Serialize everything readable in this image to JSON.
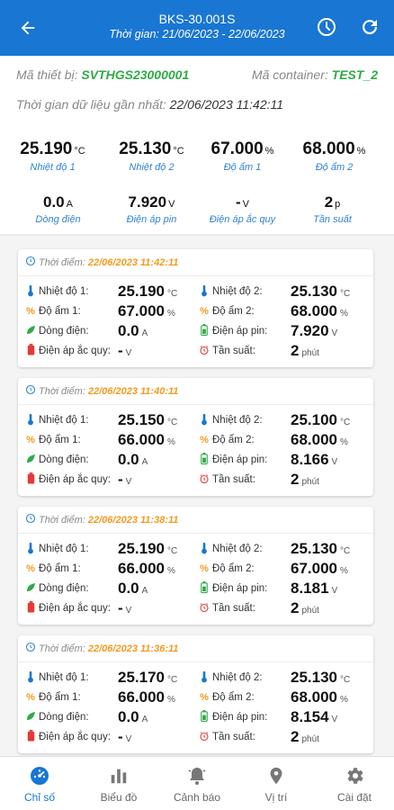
{
  "header": {
    "title": "BKS-30.001S",
    "subtitle": "Thời gian: 21/06/2023 - 22/06/2023"
  },
  "info": {
    "device_label": "Mã thiết bị:",
    "device_value": "SVTHGS23000001",
    "container_label": "Mã container:",
    "container_value": "TEST_2",
    "last_time_label": "Thời gian dữ liệu gần nhất:",
    "last_time_value": "22/06/2023 11:42:11"
  },
  "summary": {
    "temp1": {
      "value": "25.190",
      "unit": "°C",
      "label": "Nhiệt độ 1"
    },
    "temp2": {
      "value": "25.130",
      "unit": "°C",
      "label": "Nhiệt độ 2"
    },
    "hum1": {
      "value": "67.000",
      "unit": "%",
      "label": "Độ ẩm 1"
    },
    "hum2": {
      "value": "68.000",
      "unit": "%",
      "label": "Độ ẩm 2"
    },
    "current": {
      "value": "0.0",
      "unit": "A",
      "label": "Dòng điện"
    },
    "battery": {
      "value": "7.920",
      "unit": "V",
      "label": "Điện áp pin"
    },
    "accu": {
      "value": "-",
      "unit": "V",
      "label": "Điện áp ắc quy"
    },
    "freq": {
      "value": "2",
      "unit": "p",
      "label": "Tần suất"
    }
  },
  "labels": {
    "time_prefix": "Thời điểm:",
    "temp1": "Nhiệt độ 1:",
    "temp2": "Nhiệt độ 2:",
    "hum1": "Độ ẩm 1:",
    "hum2": "Độ ẩm 2:",
    "current": "Dòng điện:",
    "battery": "Điện áp pin:",
    "accu": "Điện áp ắc quy:",
    "freq": "Tần suất:",
    "unit_c": "°C",
    "unit_pct": "%",
    "unit_a": "A",
    "unit_v": "V",
    "unit_min": "phút"
  },
  "records": [
    {
      "time": "22/06/2023 11:42:11",
      "temp1": "25.190",
      "temp2": "25.130",
      "hum1": "67.000",
      "hum2": "68.000",
      "current": "0.0",
      "battery": "7.920",
      "accu": "-",
      "freq": "2"
    },
    {
      "time": "22/06/2023 11:40:11",
      "temp1": "25.150",
      "temp2": "25.100",
      "hum1": "66.000",
      "hum2": "68.000",
      "current": "0.0",
      "battery": "8.166",
      "accu": "-",
      "freq": "2"
    },
    {
      "time": "22/06/2023 11:38:11",
      "temp1": "25.190",
      "temp2": "25.130",
      "hum1": "66.000",
      "hum2": "67.000",
      "current": "0.0",
      "battery": "8.181",
      "accu": "-",
      "freq": "2"
    },
    {
      "time": "22/06/2023 11:36:11",
      "temp1": "25.170",
      "temp2": "25.130",
      "hum1": "66.000",
      "hum2": "68.000",
      "current": "0.0",
      "battery": "8.154",
      "accu": "-",
      "freq": "2"
    }
  ],
  "nav": [
    {
      "label": "Chỉ số",
      "icon": "dashboard-icon",
      "active": true
    },
    {
      "label": "Biểu đồ",
      "icon": "bar-chart-icon",
      "active": false
    },
    {
      "label": "Cảnh báo",
      "icon": "bell-icon",
      "active": false
    },
    {
      "label": "Vị trí",
      "icon": "location-pin-icon",
      "active": false
    },
    {
      "label": "Cài đặt",
      "icon": "gear-icon",
      "active": false
    }
  ],
  "colors": {
    "primary": "#1976d2",
    "green": "#2eaa46",
    "orange": "#f39a1d",
    "label_blue": "#2f82d4"
  }
}
